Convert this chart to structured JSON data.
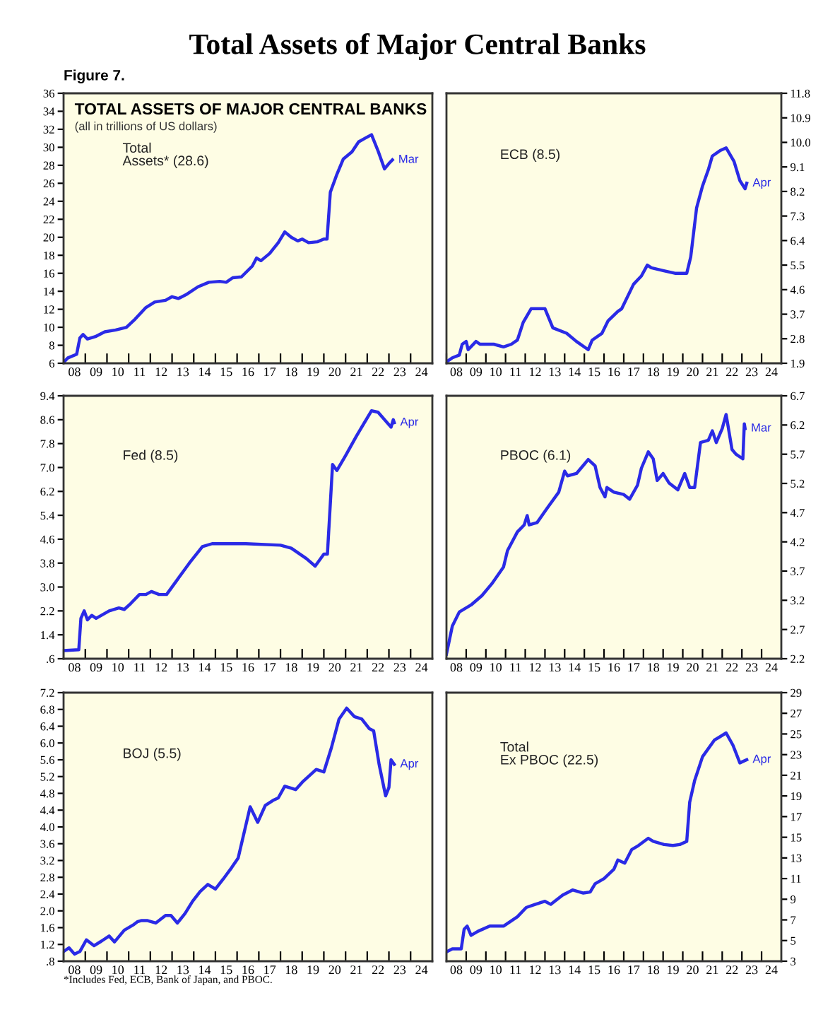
{
  "chart_data": [
    {
      "type": "line",
      "title": "TOTAL ASSETS OF MAJOR CENTRAL BANKS",
      "subtitle": "(all in trillions of US dollars)",
      "annotations": [
        "Total Assets of Major Central Banks",
        "Figure 7.",
        "Total\nAssets* (28.6)",
        "Mar"
      ],
      "series": [
        {
          "color": "#2a2ae6",
          "x": [
            "2008-01-01",
            "2008-03-14",
            "2008-08-08",
            "2008-10-01",
            "2008-11-24",
            "2009-02-06",
            "2009-07-02",
            "2009-11-24",
            "2010-05-27",
            "2010-11-24",
            "2011-04-19",
            "2011-10-19",
            "2012-03-14",
            "2012-09-13",
            "2013-01-01",
            "2013-04-19",
            "2013-09-13",
            "2014-03-14",
            "2014-09-13",
            "2015-03-14",
            "2015-07-02",
            "2015-10-19",
            "2016-03-14",
            "2016-09-13",
            "2016-11-24",
            "2017-02-06",
            "2017-07-02",
            "2017-11-24",
            "2018-03-14",
            "2018-07-02",
            "2018-10-19",
            "2019-01-01",
            "2019-04-19",
            "2019-09-13",
            "2020-01-01",
            "2020-02-24",
            "2020-04-19",
            "2020-08-08",
            "2020-11-24",
            "2021-04-19",
            "2021-08-08",
            "2021-11-24",
            "2022-03-14",
            "2022-07-02",
            "2022-10-19",
            "2023-01-01",
            "2023-03-01"
          ],
          "values": [
            6.1,
            6.6,
            7.0,
            8.8,
            9.2,
            8.7,
            9.0,
            9.5,
            9.7,
            10.0,
            10.9,
            12.2,
            12.8,
            13.0,
            13.4,
            13.2,
            13.7,
            14.5,
            15.0,
            15.1,
            15.0,
            15.5,
            15.6,
            16.8,
            17.7,
            17.4,
            18.2,
            19.4,
            20.6,
            20.0,
            19.6,
            19.8,
            19.4,
            19.5,
            19.8,
            19.8,
            25.0,
            27.0,
            28.7,
            29.5,
            30.6,
            31.0,
            31.4,
            29.6,
            27.6,
            28.2,
            28.6
          ]
        }
      ],
      "xlim": [
        "2008-01-01",
        "2025-01-01"
      ],
      "xticks": [
        {
          "value": "2008-01-01",
          "label": null
        },
        {
          "value": "2009-01-01",
          "label": null
        },
        {
          "value": "2010-01-01",
          "label": null
        },
        {
          "value": "2011-01-01",
          "label": null
        },
        {
          "value": "2012-01-01",
          "label": null
        },
        {
          "value": "2013-01-01",
          "label": null
        },
        {
          "value": "2014-01-01",
          "label": null
        },
        {
          "value": "2015-01-01",
          "label": null
        },
        {
          "value": "2016-01-01",
          "label": null
        },
        {
          "value": "2017-01-01",
          "label": null
        },
        {
          "value": "2018-01-01",
          "label": null
        },
        {
          "value": "2019-01-01",
          "label": null
        },
        {
          "value": "2020-01-01",
          "label": null
        },
        {
          "value": "2021-01-01",
          "label": null
        },
        {
          "value": "2022-01-01",
          "label": null
        },
        {
          "value": "2023-01-01",
          "label": null
        },
        {
          "value": "2024-01-01",
          "label": null
        },
        {
          "value": "2008-07-02",
          "label": "08"
        },
        {
          "value": "2009-07-02",
          "label": "09"
        },
        {
          "value": "2010-07-02",
          "label": "10"
        },
        {
          "value": "2011-07-02",
          "label": "11"
        },
        {
          "value": "2012-07-02",
          "label": "12"
        },
        {
          "value": "2013-07-02",
          "label": "13"
        },
        {
          "value": "2014-07-02",
          "label": "14"
        },
        {
          "value": "2015-07-02",
          "label": "15"
        },
        {
          "value": "2016-07-02",
          "label": "16"
        },
        {
          "value": "2017-07-02",
          "label": "17"
        },
        {
          "value": "2018-07-02",
          "label": "18"
        },
        {
          "value": "2019-07-02",
          "label": "19"
        },
        {
          "value": "2020-07-02",
          "label": "20"
        },
        {
          "value": "2021-07-02",
          "label": "21"
        },
        {
          "value": "2022-07-02",
          "label": "22"
        },
        {
          "value": "2023-07-02",
          "label": "23"
        },
        {
          "value": "2024-07-02",
          "label": "24"
        }
      ],
      "ylim": [
        6,
        36
      ],
      "yticks": [
        6,
        8,
        10,
        12,
        14,
        16,
        18,
        20,
        22,
        24,
        26,
        28,
        30,
        32,
        34,
        36
      ],
      "grid": false
    },
    {
      "type": "line",
      "annotations": [
        "ECB (8.5)",
        "Apr"
      ],
      "series": [
        {
          "color": "#2a2ae6",
          "axis": "y2",
          "x": [
            "2008-01-01",
            "2008-04-19",
            "2008-08-26",
            "2008-10-19",
            "2009-01-01",
            "2009-02-06",
            "2009-07-02",
            "2009-09-13",
            "2010-05-27",
            "2010-11-24",
            "2011-04-19",
            "2011-08-08",
            "2011-11-24",
            "2012-04-19",
            "2013-01-01",
            "2013-05-27",
            "2014-02-06",
            "2014-08-08",
            "2015-03-14",
            "2015-05-27",
            "2015-11-24",
            "2016-03-14",
            "2016-09-13",
            "2016-11-24",
            "2017-07-02",
            "2017-11-24",
            "2018-03-14",
            "2018-05-27",
            "2019-01-01",
            "2019-08-08",
            "2020-03-14",
            "2020-05-27",
            "2020-09-13",
            "2021-01-01",
            "2021-04-19",
            "2021-07-02",
            "2021-11-24",
            "2022-03-14",
            "2022-08-08",
            "2022-11-24",
            "2023-03-01",
            "2023-04-01"
          ],
          "values": [
            1.95,
            2.1,
            2.2,
            2.6,
            2.7,
            2.4,
            2.7,
            2.6,
            2.6,
            2.5,
            2.6,
            2.75,
            3.4,
            3.9,
            3.9,
            3.2,
            3.0,
            2.7,
            2.4,
            2.75,
            3.0,
            3.45,
            3.8,
            3.9,
            4.8,
            5.1,
            5.5,
            5.4,
            5.3,
            5.2,
            5.2,
            5.8,
            7.6,
            8.4,
            9.0,
            9.5,
            9.7,
            9.8,
            9.3,
            8.6,
            8.3,
            8.5
          ]
        }
      ],
      "xlim": [
        "2008-01-01",
        "2025-01-01"
      ],
      "xticks": [
        {
          "value": "2008-01-01",
          "label": null
        },
        {
          "value": "2009-01-01",
          "label": null
        },
        {
          "value": "2010-01-01",
          "label": null
        },
        {
          "value": "2011-01-01",
          "label": null
        },
        {
          "value": "2012-01-01",
          "label": null
        },
        {
          "value": "2013-01-01",
          "label": null
        },
        {
          "value": "2014-01-01",
          "label": null
        },
        {
          "value": "2015-01-01",
          "label": null
        },
        {
          "value": "2016-01-01",
          "label": null
        },
        {
          "value": "2017-01-01",
          "label": null
        },
        {
          "value": "2018-01-01",
          "label": null
        },
        {
          "value": "2019-01-01",
          "label": null
        },
        {
          "value": "2020-01-01",
          "label": null
        },
        {
          "value": "2021-01-01",
          "label": null
        },
        {
          "value": "2022-01-01",
          "label": null
        },
        {
          "value": "2023-01-01",
          "label": null
        },
        {
          "value": "2024-01-01",
          "label": null
        },
        {
          "value": "2008-07-02",
          "label": "08"
        },
        {
          "value": "2009-07-02",
          "label": "09"
        },
        {
          "value": "2010-07-02",
          "label": "10"
        },
        {
          "value": "2011-07-02",
          "label": "11"
        },
        {
          "value": "2012-07-02",
          "label": "12"
        },
        {
          "value": "2013-07-02",
          "label": "13"
        },
        {
          "value": "2014-07-02",
          "label": "14"
        },
        {
          "value": "2015-07-02",
          "label": "15"
        },
        {
          "value": "2016-07-02",
          "label": "16"
        },
        {
          "value": "2017-07-02",
          "label": "17"
        },
        {
          "value": "2018-07-02",
          "label": "18"
        },
        {
          "value": "2019-07-02",
          "label": "19"
        },
        {
          "value": "2020-07-02",
          "label": "20"
        },
        {
          "value": "2021-07-02",
          "label": "21"
        },
        {
          "value": "2022-07-02",
          "label": "22"
        },
        {
          "value": "2023-07-02",
          "label": "23"
        },
        {
          "value": "2024-07-02",
          "label": "24"
        }
      ],
      "y2lim": [
        1.9,
        11.8
      ],
      "y2ticks": [
        1.9,
        2.8,
        3.7,
        4.6,
        5.5,
        6.4,
        7.3,
        8.2,
        9.1,
        {
          "value": 10.0,
          "label": "10.0"
        },
        10.9,
        11.8
      ],
      "grid": false
    },
    {
      "type": "line",
      "annotations": [
        "Fed (8.5)",
        "Apr"
      ],
      "series": [
        {
          "color": "#2a2ae6",
          "x": [
            "2008-01-01",
            "2008-09-13",
            "2008-10-19",
            "2008-12-13",
            "2009-02-06",
            "2009-04-19",
            "2009-07-02",
            "2010-02-06",
            "2010-07-20",
            "2010-10-19",
            "2011-02-06",
            "2011-07-02",
            "2011-10-19",
            "2012-01-19",
            "2012-05-27",
            "2012-10-01",
            "2013-03-14",
            "2013-10-19",
            "2014-05-27",
            "2014-11-06",
            "2016-05-27",
            "2018-01-01",
            "2018-07-02",
            "2019-03-14",
            "2019-08-08",
            "2020-01-01",
            "2020-03-01",
            "2020-05-27",
            "2020-08-08",
            "2021-01-01",
            "2021-07-02",
            "2022-03-14",
            "2022-07-02",
            "2023-02-06",
            "2023-03-15",
            "2023-04-01"
          ],
          "values": [
            0.87,
            0.9,
            1.95,
            2.2,
            1.9,
            2.05,
            1.95,
            2.2,
            2.3,
            2.25,
            2.45,
            2.75,
            2.75,
            2.85,
            2.75,
            2.75,
            3.2,
            3.8,
            4.35,
            4.45,
            4.45,
            4.4,
            4.3,
            3.95,
            3.7,
            4.1,
            4.1,
            7.1,
            6.9,
            7.4,
            8.05,
            8.9,
            8.85,
            8.35,
            8.6,
            8.5
          ]
        }
      ],
      "xlim": [
        "2008-01-01",
        "2025-01-01"
      ],
      "xticks": [
        {
          "value": "2008-01-01",
          "label": null
        },
        {
          "value": "2009-01-01",
          "label": null
        },
        {
          "value": "2010-01-01",
          "label": null
        },
        {
          "value": "2011-01-01",
          "label": null
        },
        {
          "value": "2012-01-01",
          "label": null
        },
        {
          "value": "2013-01-01",
          "label": null
        },
        {
          "value": "2014-01-01",
          "label": null
        },
        {
          "value": "2015-01-01",
          "label": null
        },
        {
          "value": "2016-01-01",
          "label": null
        },
        {
          "value": "2017-01-01",
          "label": null
        },
        {
          "value": "2018-01-01",
          "label": null
        },
        {
          "value": "2019-01-01",
          "label": null
        },
        {
          "value": "2020-01-01",
          "label": null
        },
        {
          "value": "2021-01-01",
          "label": null
        },
        {
          "value": "2022-01-01",
          "label": null
        },
        {
          "value": "2023-01-01",
          "label": null
        },
        {
          "value": "2024-01-01",
          "label": null
        },
        {
          "value": "2008-07-02",
          "label": "08"
        },
        {
          "value": "2009-07-02",
          "label": "09"
        },
        {
          "value": "2010-07-02",
          "label": "10"
        },
        {
          "value": "2011-07-02",
          "label": "11"
        },
        {
          "value": "2012-07-02",
          "label": "12"
        },
        {
          "value": "2013-07-02",
          "label": "13"
        },
        {
          "value": "2014-07-02",
          "label": "14"
        },
        {
          "value": "2015-07-02",
          "label": "15"
        },
        {
          "value": "2016-07-02",
          "label": "16"
        },
        {
          "value": "2017-07-02",
          "label": "17"
        },
        {
          "value": "2018-07-02",
          "label": "18"
        },
        {
          "value": "2019-07-02",
          "label": "19"
        },
        {
          "value": "2020-07-02",
          "label": "20"
        },
        {
          "value": "2021-07-02",
          "label": "21"
        },
        {
          "value": "2022-07-02",
          "label": "22"
        },
        {
          "value": "2023-07-02",
          "label": "23"
        },
        {
          "value": "2024-07-02",
          "label": "24"
        }
      ],
      "ylim": [
        0.6,
        9.4
      ],
      "yticks": [
        {
          "value": 0.6,
          "label": ".6"
        },
        1.4,
        2.2,
        {
          "value": 3.0,
          "label": "3.0"
        },
        3.8,
        4.6,
        5.4,
        6.2,
        {
          "value": 7.0,
          "label": "7.0"
        },
        7.8,
        8.6,
        9.4
      ],
      "grid": false
    },
    {
      "type": "line",
      "annotations": [
        "PBOC (6.1)",
        "Mar"
      ],
      "series": [
        {
          "color": "#2a2ae6",
          "axis": "y2",
          "x": [
            "2008-01-01",
            "2008-04-19",
            "2008-08-26",
            "2009-04-01",
            "2009-10-19",
            "2010-04-19",
            "2010-11-24",
            "2011-02-06",
            "2011-08-08",
            "2011-12-13",
            "2012-02-06",
            "2012-03-14",
            "2012-08-08",
            "2013-02-06",
            "2013-09-13",
            "2014-01-01",
            "2014-02-24",
            "2014-08-08",
            "2015-01-01",
            "2015-03-14",
            "2015-07-20",
            "2015-10-19",
            "2016-01-19",
            "2016-02-24",
            "2016-07-02",
            "2017-01-01",
            "2017-04-19",
            "2017-09-13",
            "2017-11-24",
            "2018-04-01",
            "2018-07-02",
            "2018-09-13",
            "2019-01-01",
            "2019-04-19",
            "2019-10-01",
            "2020-02-06",
            "2020-05-08",
            "2020-08-08",
            "2020-11-24",
            "2021-04-19",
            "2021-07-02",
            "2021-09-13",
            "2022-01-01",
            "2022-03-14",
            "2022-07-02",
            "2022-09-13",
            "2023-01-19",
            "2023-02-15",
            "2023-03-01"
          ],
          "values": [
            2.28,
            2.76,
            3.0,
            3.12,
            3.28,
            3.48,
            3.77,
            4.05,
            4.37,
            4.49,
            4.65,
            4.49,
            4.53,
            4.77,
            5.05,
            5.41,
            5.33,
            5.37,
            5.53,
            5.61,
            5.5,
            5.13,
            4.97,
            5.13,
            5.05,
            5.01,
            4.93,
            5.17,
            5.46,
            5.74,
            5.62,
            5.25,
            5.37,
            5.21,
            5.09,
            5.37,
            5.13,
            5.13,
            5.9,
            5.94,
            6.1,
            5.9,
            6.14,
            6.38,
            5.78,
            5.7,
            5.62,
            6.22,
            6.14
          ]
        }
      ],
      "xlim": [
        "2008-01-01",
        "2025-01-01"
      ],
      "xticks": [
        {
          "value": "2008-01-01",
          "label": null
        },
        {
          "value": "2009-01-01",
          "label": null
        },
        {
          "value": "2010-01-01",
          "label": null
        },
        {
          "value": "2011-01-01",
          "label": null
        },
        {
          "value": "2012-01-01",
          "label": null
        },
        {
          "value": "2013-01-01",
          "label": null
        },
        {
          "value": "2014-01-01",
          "label": null
        },
        {
          "value": "2015-01-01",
          "label": null
        },
        {
          "value": "2016-01-01",
          "label": null
        },
        {
          "value": "2017-01-01",
          "label": null
        },
        {
          "value": "2018-01-01",
          "label": null
        },
        {
          "value": "2019-01-01",
          "label": null
        },
        {
          "value": "2020-01-01",
          "label": null
        },
        {
          "value": "2021-01-01",
          "label": null
        },
        {
          "value": "2022-01-01",
          "label": null
        },
        {
          "value": "2023-01-01",
          "label": null
        },
        {
          "value": "2024-01-01",
          "label": null
        },
        {
          "value": "2008-07-02",
          "label": "08"
        },
        {
          "value": "2009-07-02",
          "label": "09"
        },
        {
          "value": "2010-07-02",
          "label": "10"
        },
        {
          "value": "2011-07-02",
          "label": "11"
        },
        {
          "value": "2012-07-02",
          "label": "12"
        },
        {
          "value": "2013-07-02",
          "label": "13"
        },
        {
          "value": "2014-07-02",
          "label": "14"
        },
        {
          "value": "2015-07-02",
          "label": "15"
        },
        {
          "value": "2016-07-02",
          "label": "16"
        },
        {
          "value": "2017-07-02",
          "label": "17"
        },
        {
          "value": "2018-07-02",
          "label": "18"
        },
        {
          "value": "2019-07-02",
          "label": "19"
        },
        {
          "value": "2020-07-02",
          "label": "20"
        },
        {
          "value": "2021-07-02",
          "label": "21"
        },
        {
          "value": "2022-07-02",
          "label": "22"
        },
        {
          "value": "2023-07-02",
          "label": "23"
        },
        {
          "value": "2024-07-02",
          "label": "24"
        }
      ],
      "y2lim": [
        2.2,
        6.7
      ],
      "y2ticks": [
        2.2,
        2.7,
        3.2,
        3.7,
        4.2,
        4.7,
        5.2,
        5.7,
        6.2,
        6.7
      ],
      "grid": false
    },
    {
      "type": "line",
      "annotations": [
        "BOJ (5.5)",
        "Apr",
        "*Includes Fed, ECB, Bank of Japan, and PBOC."
      ],
      "series": [
        {
          "color": "#2a2ae6",
          "x": [
            "2008-01-01",
            "2008-04-01",
            "2008-07-02",
            "2008-10-01",
            "2009-01-19",
            "2009-05-27",
            "2009-10-01",
            "2010-02-06",
            "2010-05-08",
            "2010-10-19",
            "2011-03-14",
            "2011-05-27",
            "2011-08-08",
            "2011-11-06",
            "2012-04-01",
            "2012-09-13",
            "2012-12-13",
            "2013-04-01",
            "2013-08-08",
            "2013-12-13",
            "2014-04-19",
            "2014-08-26",
            "2015-01-01",
            "2015-05-08",
            "2015-10-01",
            "2016-01-19",
            "2016-08-08",
            "2016-12-13",
            "2017-04-19",
            "2017-08-26",
            "2017-11-24",
            "2018-03-14",
            "2018-09-13",
            "2019-01-19",
            "2019-08-26",
            "2020-01-01",
            "2020-05-08",
            "2020-09-13",
            "2021-01-19",
            "2021-05-27",
            "2021-10-01",
            "2022-02-06",
            "2022-04-19",
            "2022-07-20",
            "2022-11-06",
            "2023-01-01",
            "2023-02-06",
            "2023-04-01"
          ],
          "values": [
            1.03,
            1.12,
            0.97,
            1.03,
            1.31,
            1.17,
            1.28,
            1.4,
            1.26,
            1.54,
            1.66,
            1.74,
            1.77,
            1.77,
            1.71,
            1.89,
            1.89,
            1.71,
            1.94,
            2.23,
            2.46,
            2.63,
            2.52,
            2.75,
            3.03,
            3.26,
            4.48,
            4.11,
            4.51,
            4.63,
            4.69,
            4.97,
            4.89,
            5.09,
            5.37,
            5.31,
            5.89,
            6.57,
            6.83,
            6.63,
            6.57,
            6.34,
            6.29,
            5.49,
            4.74,
            4.94,
            5.6,
            5.49
          ]
        }
      ],
      "xlim": [
        "2008-01-01",
        "2025-01-01"
      ],
      "xticks": [
        {
          "value": "2008-01-01",
          "label": null
        },
        {
          "value": "2009-01-01",
          "label": null
        },
        {
          "value": "2010-01-01",
          "label": null
        },
        {
          "value": "2011-01-01",
          "label": null
        },
        {
          "value": "2012-01-01",
          "label": null
        },
        {
          "value": "2013-01-01",
          "label": null
        },
        {
          "value": "2014-01-01",
          "label": null
        },
        {
          "value": "2015-01-01",
          "label": null
        },
        {
          "value": "2016-01-01",
          "label": null
        },
        {
          "value": "2017-01-01",
          "label": null
        },
        {
          "value": "2018-01-01",
          "label": null
        },
        {
          "value": "2019-01-01",
          "label": null
        },
        {
          "value": "2020-01-01",
          "label": null
        },
        {
          "value": "2021-01-01",
          "label": null
        },
        {
          "value": "2022-01-01",
          "label": null
        },
        {
          "value": "2023-01-01",
          "label": null
        },
        {
          "value": "2024-01-01",
          "label": null
        },
        {
          "value": "2008-07-02",
          "label": "08"
        },
        {
          "value": "2009-07-02",
          "label": "09"
        },
        {
          "value": "2010-07-02",
          "label": "10"
        },
        {
          "value": "2011-07-02",
          "label": "11"
        },
        {
          "value": "2012-07-02",
          "label": "12"
        },
        {
          "value": "2013-07-02",
          "label": "13"
        },
        {
          "value": "2014-07-02",
          "label": "14"
        },
        {
          "value": "2015-07-02",
          "label": "15"
        },
        {
          "value": "2016-07-02",
          "label": "16"
        },
        {
          "value": "2017-07-02",
          "label": "17"
        },
        {
          "value": "2018-07-02",
          "label": "18"
        },
        {
          "value": "2019-07-02",
          "label": "19"
        },
        {
          "value": "2020-07-02",
          "label": "20"
        },
        {
          "value": "2021-07-02",
          "label": "21"
        },
        {
          "value": "2022-07-02",
          "label": "22"
        },
        {
          "value": "2023-07-02",
          "label": "23"
        },
        {
          "value": "2024-07-02",
          "label": "24"
        }
      ],
      "ylim": [
        0.8,
        7.2
      ],
      "yticks": [
        {
          "value": 0.8,
          "label": ".8"
        },
        1.2,
        1.6,
        {
          "value": 2.0,
          "label": "2.0"
        },
        2.4,
        2.8,
        3.2,
        3.6,
        {
          "value": 4.0,
          "label": "4.0"
        },
        4.4,
        4.8,
        5.2,
        5.6,
        {
          "value": 6.0,
          "label": "6.0"
        },
        6.4,
        6.8,
        7.2
      ],
      "grid": false
    },
    {
      "type": "line",
      "annotations": [
        "Total\nEx PBOC (22.5)",
        "Apr"
      ],
      "series": [
        {
          "color": "#2a2ae6",
          "axis": "y2",
          "x": [
            "2008-01-01",
            "2008-04-19",
            "2008-10-01",
            "2008-11-24",
            "2009-01-19",
            "2009-04-01",
            "2009-08-08",
            "2010-03-14",
            "2010-11-24",
            "2011-08-08",
            "2012-01-19",
            "2012-07-02",
            "2013-01-01",
            "2013-04-19",
            "2013-11-24",
            "2014-05-27",
            "2014-12-13",
            "2015-04-19",
            "2015-07-20",
            "2016-01-01",
            "2016-07-02",
            "2016-09-13",
            "2017-01-19",
            "2017-05-27",
            "2017-10-01",
            "2018-04-01",
            "2018-07-02",
            "2019-01-19",
            "2019-07-02",
            "2019-11-06",
            "2020-03-14",
            "2020-05-08",
            "2020-08-08",
            "2021-01-01",
            "2021-08-08",
            "2022-03-14",
            "2022-07-20",
            "2022-11-24",
            "2023-04-01"
          ],
          "values": [
            3.9,
            4.2,
            4.2,
            6.1,
            6.4,
            5.5,
            5.9,
            6.4,
            6.4,
            7.3,
            8.2,
            8.5,
            8.8,
            8.5,
            9.4,
            9.9,
            9.6,
            9.7,
            10.5,
            11.0,
            11.9,
            12.8,
            12.5,
            13.8,
            14.2,
            14.9,
            14.6,
            14.3,
            14.2,
            14.3,
            14.6,
            18.4,
            20.5,
            22.8,
            24.4,
            25.1,
            23.9,
            22.2,
            22.5
          ]
        }
      ],
      "xlim": [
        "2008-01-01",
        "2025-01-01"
      ],
      "xticks": [
        {
          "value": "2008-01-01",
          "label": null
        },
        {
          "value": "2009-01-01",
          "label": null
        },
        {
          "value": "2010-01-01",
          "label": null
        },
        {
          "value": "2011-01-01",
          "label": null
        },
        {
          "value": "2012-01-01",
          "label": null
        },
        {
          "value": "2013-01-01",
          "label": null
        },
        {
          "value": "2014-01-01",
          "label": null
        },
        {
          "value": "2015-01-01",
          "label": null
        },
        {
          "value": "2016-01-01",
          "label": null
        },
        {
          "value": "2017-01-01",
          "label": null
        },
        {
          "value": "2018-01-01",
          "label": null
        },
        {
          "value": "2019-01-01",
          "label": null
        },
        {
          "value": "2020-01-01",
          "label": null
        },
        {
          "value": "2021-01-01",
          "label": null
        },
        {
          "value": "2022-01-01",
          "label": null
        },
        {
          "value": "2023-01-01",
          "label": null
        },
        {
          "value": "2024-01-01",
          "label": null
        },
        {
          "value": "2008-07-02",
          "label": "08"
        },
        {
          "value": "2009-07-02",
          "label": "09"
        },
        {
          "value": "2010-07-02",
          "label": "10"
        },
        {
          "value": "2011-07-02",
          "label": "11"
        },
        {
          "value": "2012-07-02",
          "label": "12"
        },
        {
          "value": "2013-07-02",
          "label": "13"
        },
        {
          "value": "2014-07-02",
          "label": "14"
        },
        {
          "value": "2015-07-02",
          "label": "15"
        },
        {
          "value": "2016-07-02",
          "label": "16"
        },
        {
          "value": "2017-07-02",
          "label": "17"
        },
        {
          "value": "2018-07-02",
          "label": "18"
        },
        {
          "value": "2019-07-02",
          "label": "19"
        },
        {
          "value": "2020-07-02",
          "label": "20"
        },
        {
          "value": "2021-07-02",
          "label": "21"
        },
        {
          "value": "2022-07-02",
          "label": "22"
        },
        {
          "value": "2023-07-02",
          "label": "23"
        },
        {
          "value": "2024-07-02",
          "label": "24"
        }
      ],
      "y2lim": [
        3,
        29
      ],
      "y2ticks": [
        3,
        5,
        7,
        9,
        11,
        13,
        15,
        17,
        19,
        21,
        23,
        25,
        27,
        29
      ],
      "grid": false
    }
  ]
}
